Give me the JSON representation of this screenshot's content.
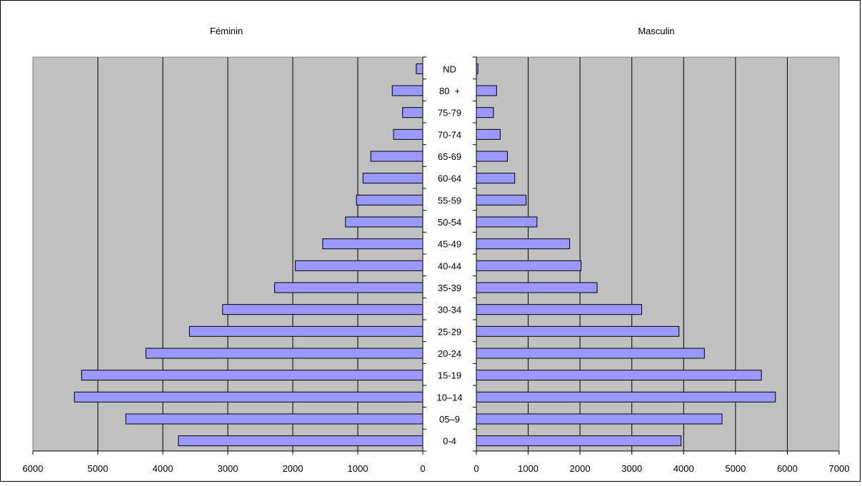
{
  "chart_data": {
    "type": "bar",
    "orientation": "horizontal",
    "subtype": "population-pyramid",
    "categories": [
      "ND",
      "80  +",
      "75-79",
      "70-74",
      "65-69",
      "60-64",
      "55-59",
      "50-54",
      "45-49",
      "40-44",
      "35-39",
      "30-34",
      "25-29",
      "20-24",
      "15-19",
      "10–14",
      "05–9",
      "0-4"
    ],
    "panels": [
      {
        "name": "Féminin",
        "direction": "reversed",
        "xlim": [
          0,
          6000
        ],
        "ticks": [
          0,
          1000,
          2000,
          3000,
          4000,
          5000,
          6000
        ],
        "values": [
          100,
          470,
          310,
          450,
          800,
          920,
          1020,
          1190,
          1540,
          1960,
          2280,
          3080,
          3590,
          4260,
          5250,
          5360,
          4570,
          3760
        ]
      },
      {
        "name": "Masculin",
        "direction": "normal",
        "xlim": [
          0,
          7000
        ],
        "ticks": [
          0,
          1000,
          2000,
          3000,
          4000,
          5000,
          6000,
          7000
        ],
        "values": [
          30,
          390,
          330,
          460,
          600,
          740,
          960,
          1170,
          1800,
          2020,
          2330,
          3190,
          3910,
          4400,
          5500,
          5770,
          4740,
          3950
        ]
      }
    ],
    "grid": true,
    "plot_background": "#c0c0c0",
    "bar_color": "#9999ff",
    "bar_edge_color": "#000000",
    "gridline_color": "#000000"
  }
}
